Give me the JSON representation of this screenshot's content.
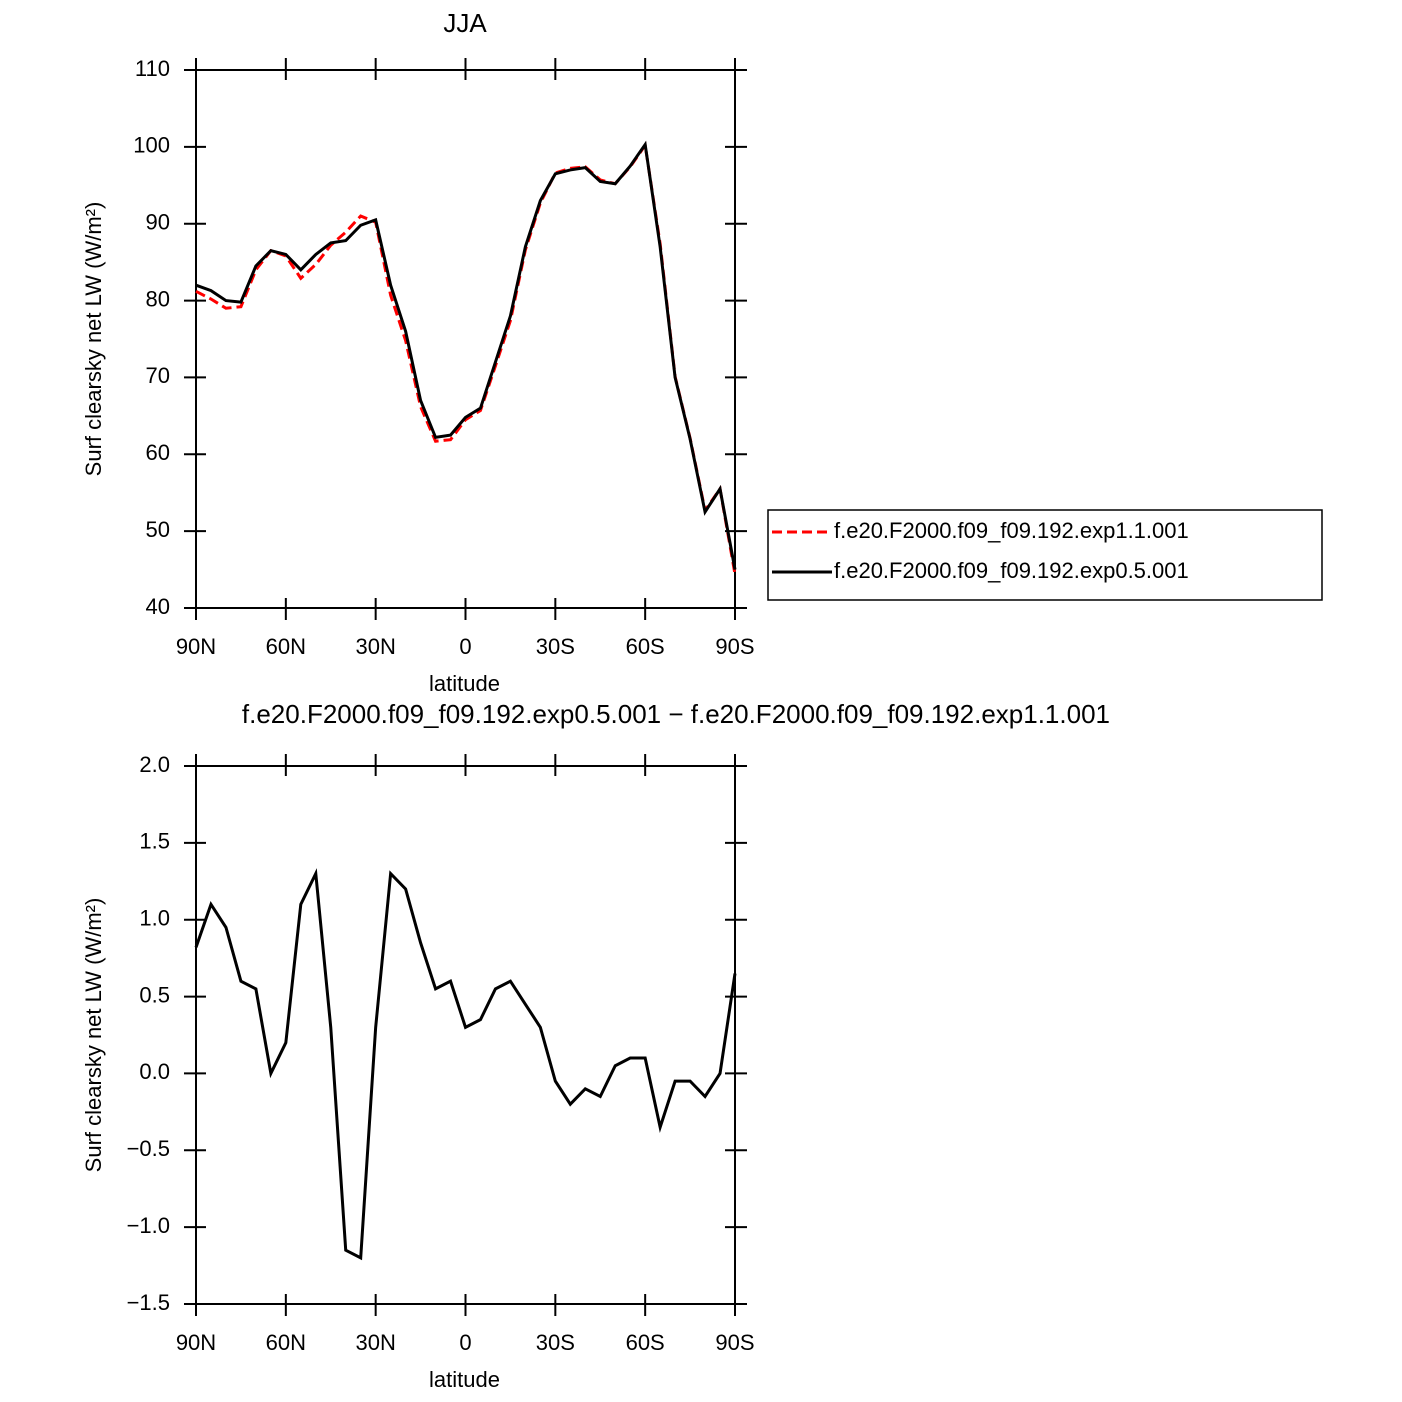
{
  "chart_data": [
    {
      "type": "line",
      "title": "JJA",
      "xlabel": "latitude",
      "ylabel": "Surf clearsky net LW (W/m²)",
      "x": [
        90,
        85,
        80,
        75,
        70,
        65,
        60,
        55,
        50,
        45,
        40,
        35,
        30,
        25,
        20,
        15,
        10,
        5,
        0,
        -5,
        -10,
        -15,
        -20,
        -25,
        -30,
        -35,
        -40,
        -45,
        -50,
        -55,
        -60,
        -65,
        -70,
        -75,
        -80,
        -85,
        -90
      ],
      "series": [
        {
          "name": "f.e20.F2000.f09_f09.192.exp1.1.001",
          "color": "#ff0000",
          "linestyle": "dashed",
          "values": [
            81.2,
            80.2,
            79.0,
            79.2,
            84.0,
            86.5,
            85.8,
            82.9,
            84.7,
            87.2,
            88.9,
            91.0,
            90.2,
            80.7,
            74.8,
            66.2,
            61.7,
            61.9,
            64.5,
            65.7,
            71.5,
            77.4,
            86.6,
            92.7,
            96.6,
            97.2,
            97.4,
            95.7,
            95.2,
            97.4,
            100.2,
            87.4,
            70.1,
            62.1,
            52.7,
            55.5,
            44.4
          ]
        },
        {
          "name": "f.e20.F2000.f09_f09.192.exp0.5.001",
          "color": "#000000",
          "linestyle": "solid",
          "values": [
            82.0,
            81.3,
            80.0,
            79.8,
            84.5,
            86.5,
            86.0,
            84.0,
            86.0,
            87.5,
            87.8,
            89.8,
            90.5,
            82.0,
            76.0,
            67.0,
            62.2,
            62.5,
            64.8,
            66.0,
            72.0,
            78.0,
            87.0,
            93.0,
            96.5,
            97.0,
            97.3,
            95.5,
            95.2,
            97.5,
            100.3,
            87.0,
            70.0,
            62.0,
            52.5,
            55.5,
            45.0
          ]
        }
      ],
      "xlim": [
        90,
        -90
      ],
      "xticks": [
        {
          "value": 90,
          "label": "90N"
        },
        {
          "value": 60,
          "label": "60N"
        },
        {
          "value": 30,
          "label": "30N"
        },
        0,
        {
          "value": -30,
          "label": "30S"
        },
        {
          "value": -60,
          "label": "60S"
        },
        {
          "value": -90,
          "label": "90S"
        }
      ],
      "ylim": [
        40,
        110
      ],
      "yticks": [
        40,
        50,
        60,
        70,
        80,
        90,
        100,
        110
      ],
      "legend": "right"
    },
    {
      "type": "line",
      "title": "f.e20.F2000.f09_f09.192.exp0.5.001 − f.e20.F2000.f09_f09.192.exp1.1.001",
      "xlabel": "latitude",
      "ylabel": "Surf clearsky net LW (W/m²)",
      "x": [
        90,
        85,
        80,
        75,
        70,
        65,
        60,
        55,
        50,
        45,
        40,
        35,
        30,
        25,
        20,
        15,
        10,
        5,
        0,
        -5,
        -10,
        -15,
        -20,
        -25,
        -30,
        -35,
        -40,
        -45,
        -50,
        -55,
        -60,
        -65,
        -70,
        -75,
        -80,
        -85,
        -90
      ],
      "series": [
        {
          "color": "#000000",
          "linestyle": "solid",
          "values": [
            0.82,
            1.1,
            0.95,
            0.6,
            0.55,
            0.0,
            0.2,
            1.1,
            1.3,
            0.3,
            -1.15,
            -1.2,
            0.3,
            1.3,
            1.2,
            0.85,
            0.55,
            0.6,
            0.3,
            0.35,
            0.55,
            0.6,
            0.45,
            0.3,
            -0.05,
            -0.2,
            -0.1,
            -0.15,
            0.05,
            0.1,
            0.1,
            -0.35,
            -0.05,
            -0.05,
            -0.15,
            0.0,
            0.65
          ]
        }
      ],
      "xlim": [
        90,
        -90
      ],
      "xticks": [
        {
          "value": 90,
          "label": "90N"
        },
        {
          "value": 60,
          "label": "60N"
        },
        {
          "value": 30,
          "label": "30N"
        },
        0,
        {
          "value": -30,
          "label": "30S"
        },
        {
          "value": -60,
          "label": "60S"
        },
        {
          "value": -90,
          "label": "90S"
        }
      ],
      "ylim": [
        -1.5,
        2.0
      ],
      "yticks": [
        {
          "value": -1.5,
          "label": "−1.5"
        },
        {
          "value": -1.0,
          "label": "−1.0"
        },
        {
          "value": -0.5,
          "label": "−0.5"
        },
        {
          "value": 0.0,
          "label": "0.0"
        },
        0.5,
        {
          "value": 1.0,
          "label": "1.0"
        },
        1.5,
        {
          "value": 2.0,
          "label": "2.0"
        }
      ]
    }
  ]
}
